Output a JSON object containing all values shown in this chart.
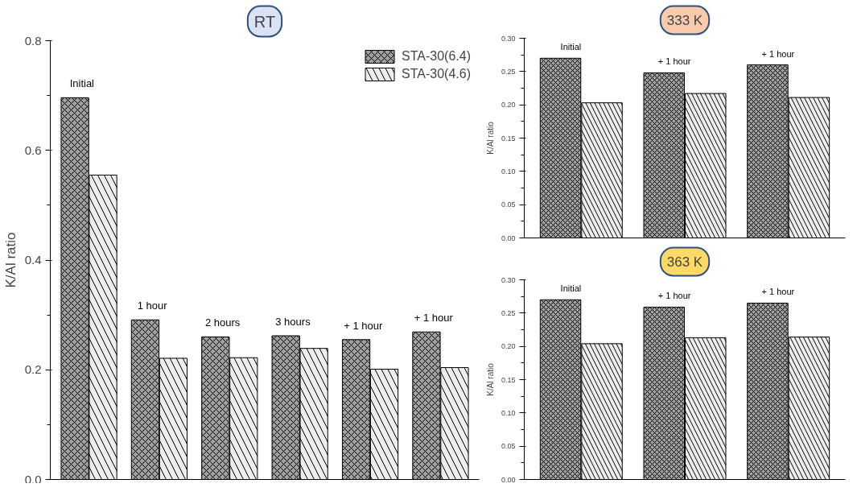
{
  "chart_data": [
    {
      "type": "bar",
      "title": "RT",
      "ylabel": "K/Al ratio",
      "categories": [
        "Initial",
        "1 hour",
        "2 hours",
        "3 hours",
        "+ 1 hour",
        "+ 1 hour"
      ],
      "ylim": [
        0,
        0.8
      ],
      "yticks": [
        {
          "value": 0,
          "label": "0.0"
        },
        0.2,
        0.4,
        0.6,
        0.8
      ],
      "tick_labels": "y",
      "legend": "top right",
      "grid": false,
      "series": [
        {
          "name": "STA-30(6.4)",
          "color": "#a0a0a0",
          "values": [
            0.696,
            0.291,
            0.26,
            0.262,
            0.255,
            0.269
          ]
        },
        {
          "name": "STA-30(4.6)",
          "color": "#eeeeee",
          "values": [
            0.555,
            0.221,
            0.222,
            0.239,
            0.201,
            0.204
          ]
        }
      ]
    },
    {
      "type": "bar",
      "title": "333 K",
      "ylabel": "K/Al ratio",
      "categories": [
        "Initial",
        "+ 1 hour",
        "+ 1 hour"
      ],
      "ylim": [
        0,
        0.3
      ],
      "yticks": [
        {
          "value": 0,
          "label": "0.00"
        },
        0.05,
        {
          "value": 0.1,
          "label": "0.10"
        },
        0.15,
        {
          "value": 0.2,
          "label": "0.20"
        },
        0.25,
        {
          "value": 0.3,
          "label": "0.30"
        }
      ],
      "tick_labels": "y",
      "grid": false,
      "series": [
        {
          "color": "#a0a0a0",
          "values": [
            0.27,
            0.248,
            0.26
          ]
        },
        {
          "color": "#eeeeee",
          "values": [
            0.203,
            0.217,
            0.211
          ]
        }
      ]
    },
    {
      "type": "bar",
      "title": "363 K",
      "ylabel": "K/Al ratio",
      "categories": [
        "Initial",
        "+ 1 hour",
        "+ 1 hour"
      ],
      "ylim": [
        0,
        0.3
      ],
      "yticks": [
        {
          "value": 0,
          "label": "0.00"
        },
        0.05,
        {
          "value": 0.1,
          "label": "0.10"
        },
        0.15,
        {
          "value": 0.2,
          "label": "0.20"
        },
        0.25,
        {
          "value": 0.3,
          "label": "0.30"
        }
      ],
      "tick_labels": "y",
      "grid": false,
      "series": [
        {
          "color": "#a0a0a0",
          "values": [
            0.27,
            0.259,
            0.265
          ]
        },
        {
          "color": "#eeeeee",
          "values": [
            0.204,
            0.213,
            0.214
          ]
        }
      ]
    }
  ]
}
